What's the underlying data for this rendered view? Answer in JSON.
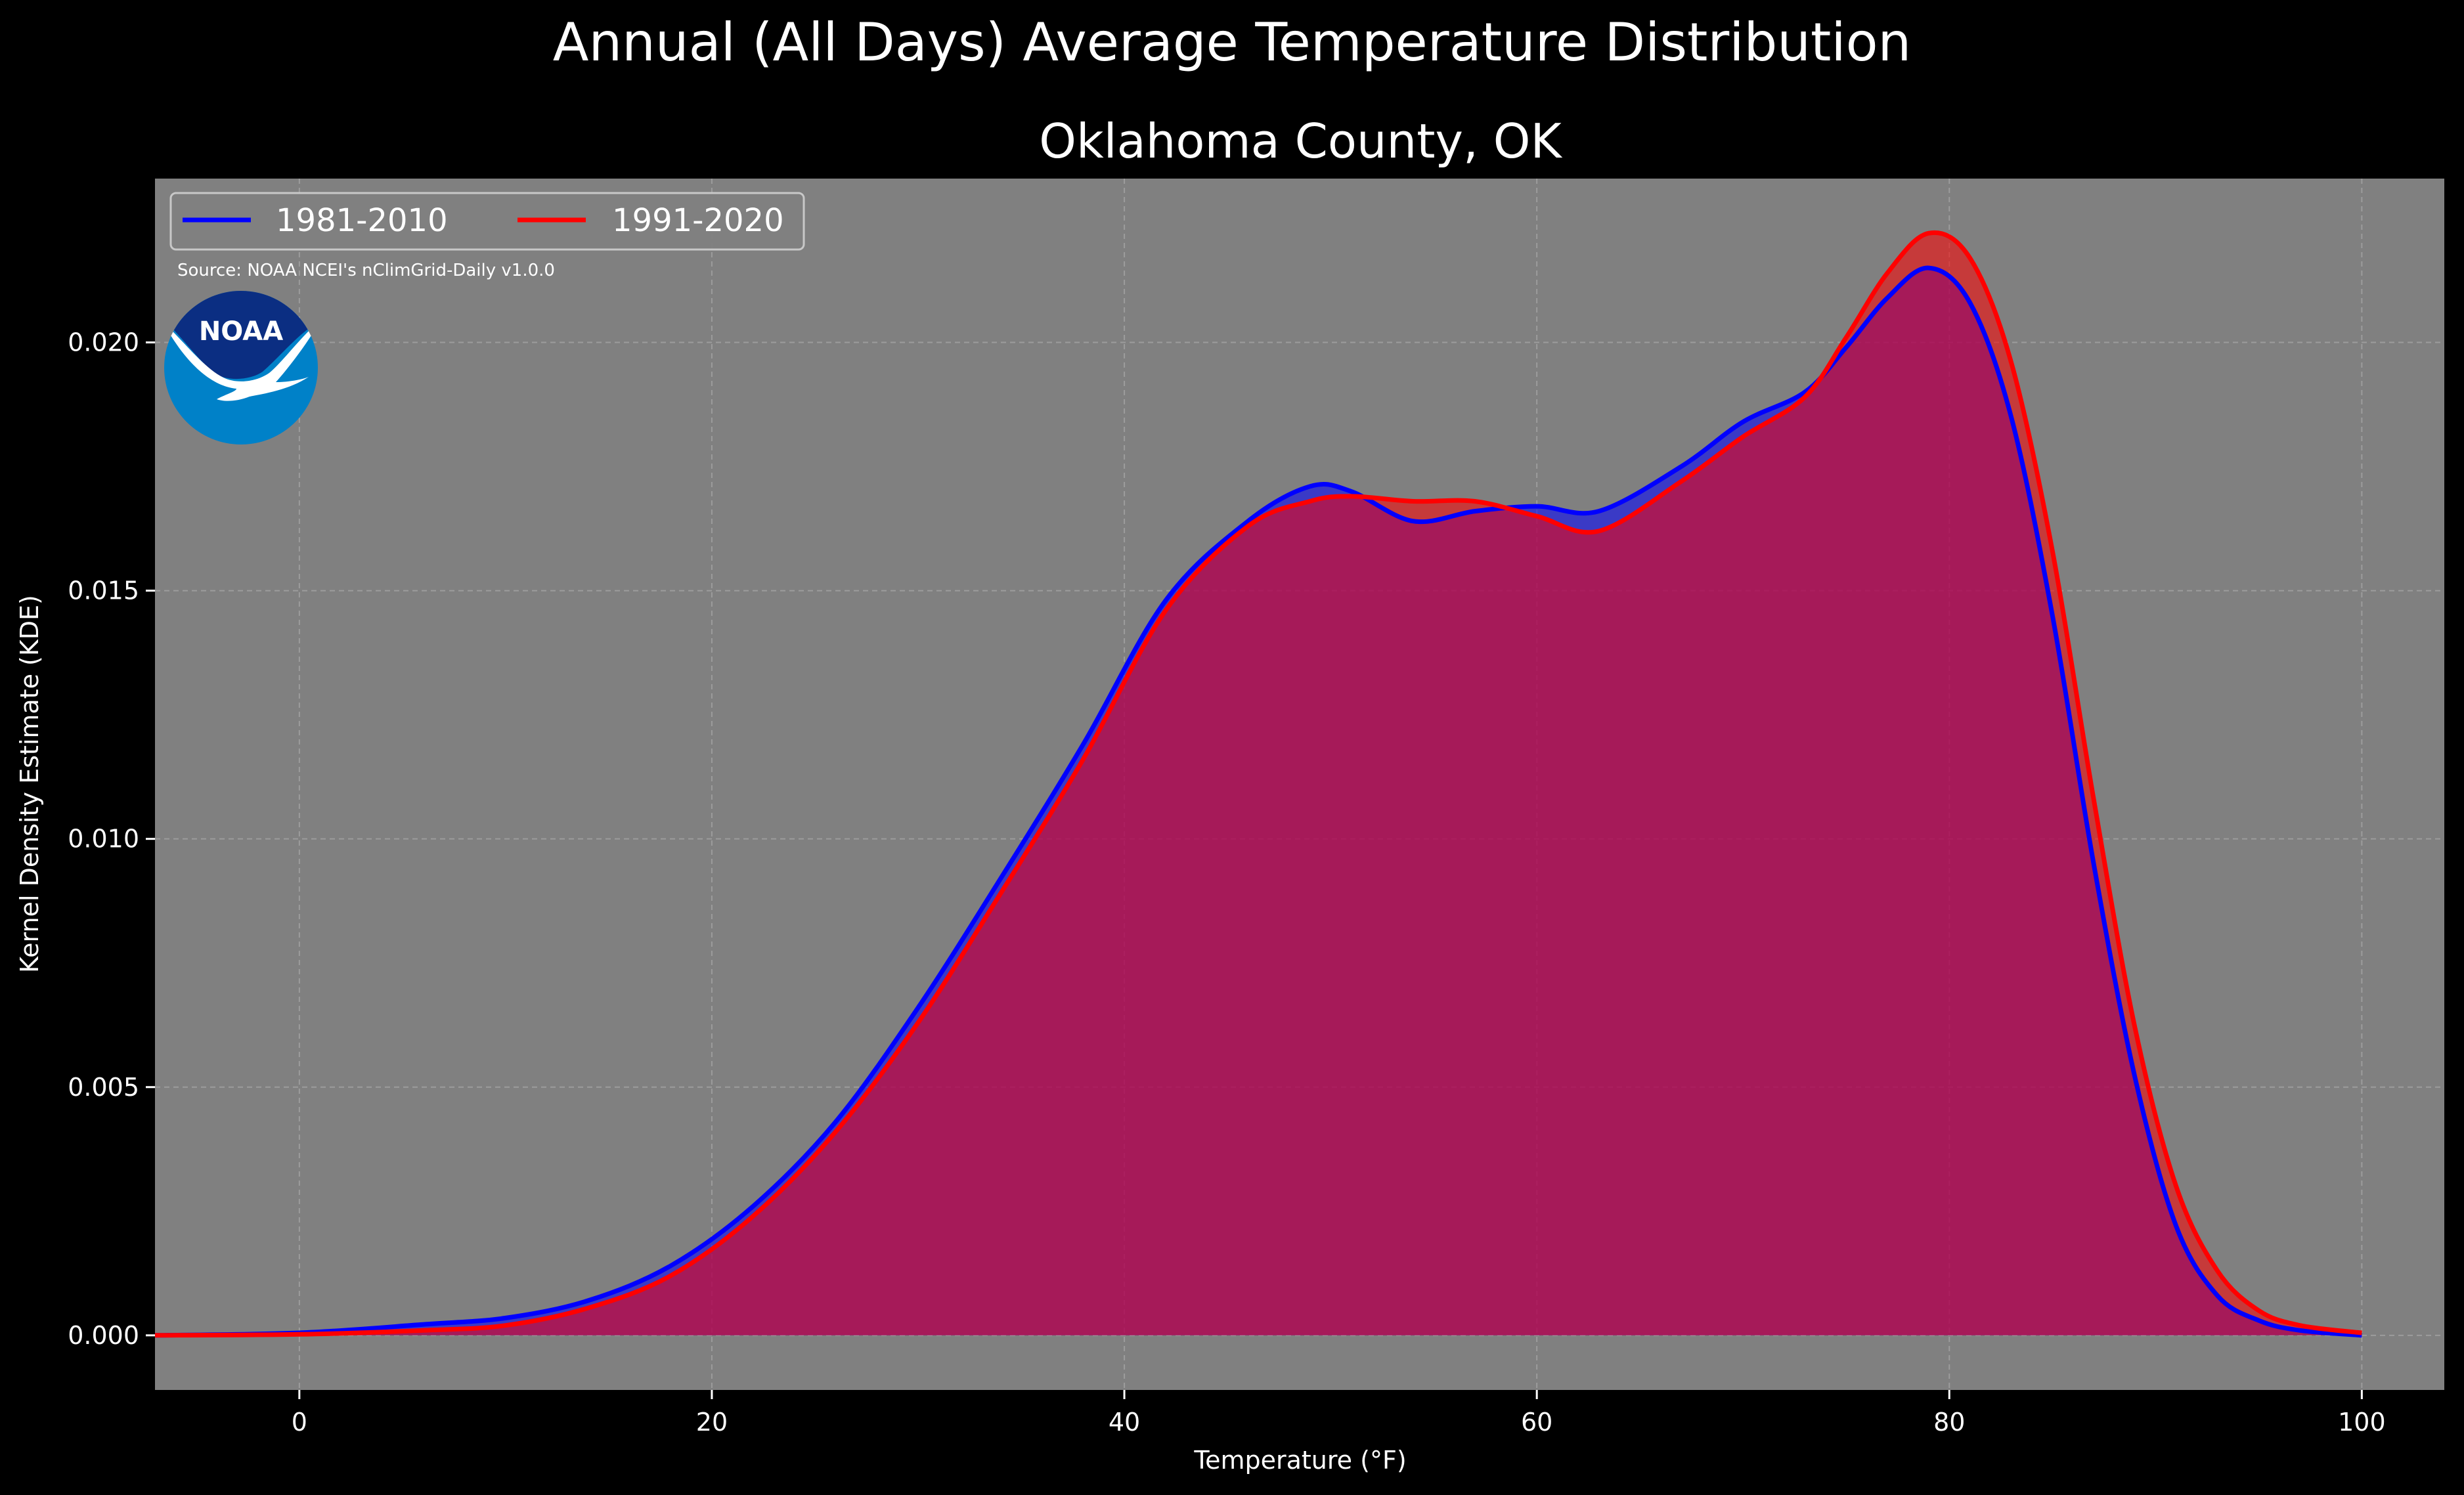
{
  "figure": {
    "title": "Annual (All Days) Average Temperature Distribution",
    "subtitle": "Oklahoma County, OK",
    "source": "Source: NOAA NCEI's nClimGrid-Daily v1.0.0",
    "logo_text": "NOAA"
  },
  "chart_data": {
    "type": "area",
    "title": "Oklahoma County, OK",
    "xlabel": "Temperature (°F)",
    "ylabel": "Kernel Density Estimate (KDE)",
    "xlim": [
      -7,
      104
    ],
    "ylim": [
      -0.0011,
      0.0233
    ],
    "xticks": [
      0,
      20,
      40,
      60,
      80,
      100
    ],
    "xtick_labels": [
      "0",
      "20",
      "40",
      "60",
      "80",
      "100"
    ],
    "yticks": [
      0,
      0.005,
      0.01,
      0.015,
      0.02
    ],
    "ytick_labels": [
      "0.000",
      "0.005",
      "0.010",
      "0.015",
      "0.020"
    ],
    "grid": true,
    "legend_position": "top-left",
    "series": [
      {
        "name": "1981-2010",
        "color": "#0000ff",
        "fill_color": "#0000ff",
        "x": [
          -7,
          0,
          6,
          10,
          14,
          18,
          22,
          26,
          30,
          34,
          38,
          42,
          46,
          49,
          51,
          54,
          57,
          60,
          63,
          67,
          70,
          73,
          75,
          77,
          79,
          81,
          83,
          85,
          87,
          89,
          91,
          93,
          95,
          97,
          100
        ],
        "y": [
          0,
          5e-05,
          0.00022,
          0.00035,
          0.0007,
          0.0014,
          0.0026,
          0.0043,
          0.0066,
          0.0092,
          0.0119,
          0.0148,
          0.0164,
          0.0171,
          0.017,
          0.0164,
          0.0166,
          0.0167,
          0.0166,
          0.0175,
          0.0184,
          0.019,
          0.0199,
          0.0209,
          0.0215,
          0.0208,
          0.0185,
          0.0145,
          0.0095,
          0.0052,
          0.0022,
          0.0008,
          0.0003,
          0.0001,
          0
        ]
      },
      {
        "name": "1991-2020",
        "color": "#ff0000",
        "fill_color": "#ff0000",
        "x": [
          -7,
          0,
          6,
          10,
          14,
          18,
          22,
          26,
          30,
          34,
          38,
          42,
          46,
          49,
          51,
          54,
          57,
          60,
          63,
          67,
          70,
          73,
          75,
          77,
          79,
          81,
          83,
          85,
          87,
          89,
          91,
          93,
          95,
          97,
          100
        ],
        "y": [
          0,
          2e-05,
          0.0001,
          0.0002,
          0.00055,
          0.0012,
          0.0024,
          0.0041,
          0.0063,
          0.0089,
          0.0116,
          0.0146,
          0.0163,
          0.0168,
          0.0169,
          0.0168,
          0.0168,
          0.0165,
          0.0162,
          0.0172,
          0.0181,
          0.0189,
          0.0201,
          0.0214,
          0.0222,
          0.0217,
          0.0196,
          0.0158,
          0.0108,
          0.0062,
          0.003,
          0.0013,
          0.0005,
          0.0002,
          5e-05
        ]
      }
    ]
  }
}
